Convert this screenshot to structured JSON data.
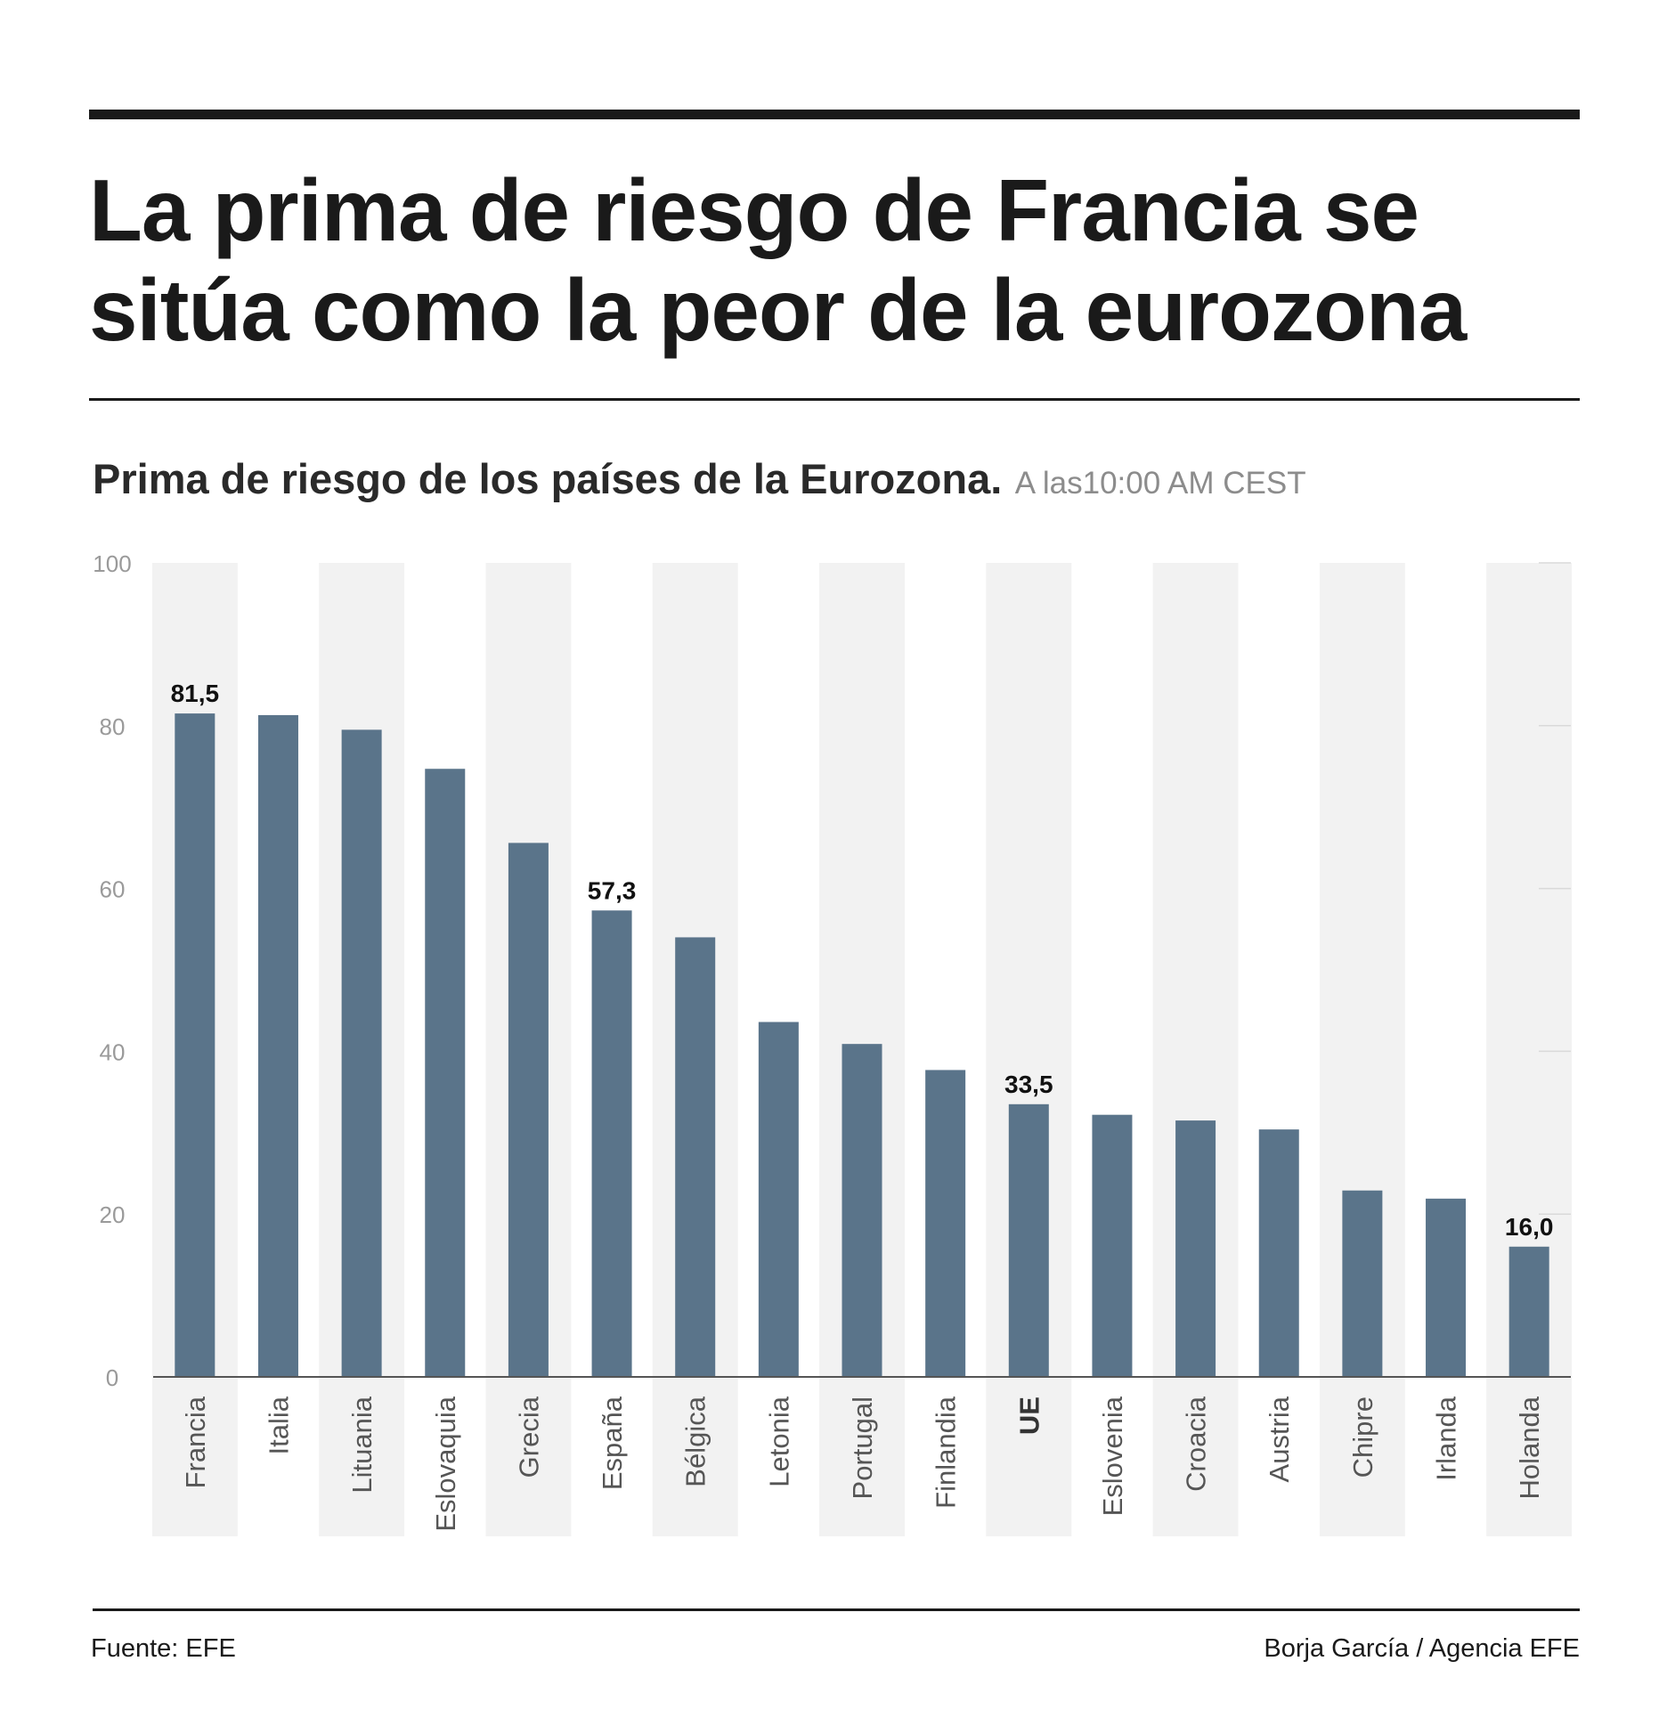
{
  "header": {
    "title": "La prima de riesgo de Francia se sitúa como la peor de la eurozona",
    "subtitle": "Prima de riesgo de los países de la Eurozona.",
    "subtitle_note": "A las10:00 AM CEST"
  },
  "footer": {
    "source": "Fuente: EFE",
    "credit": "Borja García / Agencia EFE"
  },
  "colors": {
    "bar": "#5a748a",
    "band": "#f2f2f2",
    "axis_label": "#9a9a9a",
    "category_label": "#555555",
    "value_label": "#111111"
  },
  "chart_data": {
    "type": "bar",
    "orientation": "vertical",
    "categories": [
      "Francia",
      "Italia",
      "Lituania",
      "Eslovaquia",
      "Grecia",
      "España",
      "Bélgica",
      "Letonia",
      "Portugal",
      "Finlandia",
      "UE",
      "Eslovenia",
      "Croacia",
      "Austria",
      "Chipre",
      "Irlanda",
      "Holanda"
    ],
    "values": [
      81.5,
      81.3,
      79.5,
      74.7,
      65.6,
      57.3,
      54.0,
      43.6,
      40.9,
      37.7,
      33.5,
      32.2,
      31.5,
      30.4,
      22.9,
      21.9,
      16.0
    ],
    "value_labels": {
      "0": "81,5",
      "5": "57,3",
      "10": "33,5",
      "16": "16,0"
    },
    "highlight_categories": [
      "UE"
    ],
    "ylim": [
      0,
      100
    ],
    "yticks": [
      0,
      20,
      40,
      60,
      80,
      100
    ],
    "grid": false,
    "legend": "none"
  }
}
